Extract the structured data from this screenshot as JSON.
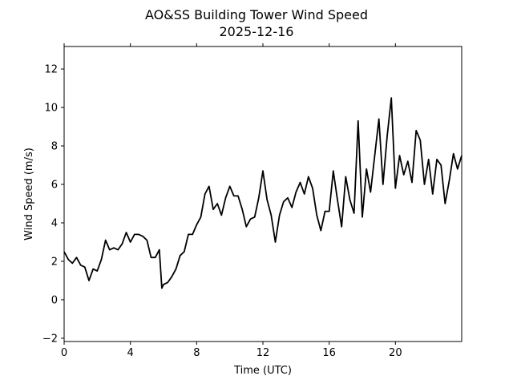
{
  "chart_data": {
    "type": "line",
    "title": "AO&SS Building Tower Wind Speed",
    "subtitle": "2025-12-16",
    "xlabel": "Time (UTC)",
    "ylabel": "Wind Speed (m/s)",
    "xlim": [
      0,
      24
    ],
    "ylim": [
      -2.17,
      13.17
    ],
    "xticks": [
      0,
      4,
      8,
      12,
      16,
      20
    ],
    "xtick_labels": [
      "0",
      "4",
      "8",
      "12",
      "16",
      "20"
    ],
    "yticks": [
      -2,
      0,
      2,
      4,
      6,
      8,
      10,
      12
    ],
    "ytick_labels": [
      "−2",
      "0",
      "2",
      "4",
      "6",
      "8",
      "10",
      "12"
    ],
    "grid": false,
    "line_color": "#000000",
    "x": [
      0,
      0.25,
      0.5,
      0.75,
      1,
      1.25,
      1.5,
      1.75,
      2,
      2.25,
      2.5,
      2.75,
      3,
      3.25,
      3.5,
      3.75,
      4,
      4.25,
      4.5,
      4.75,
      5,
      5.25,
      5.5,
      5.75,
      5.9,
      6,
      6.25,
      6.5,
      6.75,
      7,
      7.25,
      7.5,
      7.75,
      8,
      8.25,
      8.5,
      8.75,
      9,
      9.25,
      9.5,
      9.75,
      10,
      10.25,
      10.5,
      10.75,
      11,
      11.25,
      11.5,
      11.75,
      12,
      12.25,
      12.5,
      12.75,
      13,
      13.25,
      13.5,
      13.75,
      14,
      14.25,
      14.5,
      14.75,
      15,
      15.25,
      15.5,
      15.75,
      16,
      16.25,
      16.5,
      16.75,
      17,
      17.25,
      17.5,
      17.75,
      18,
      18.25,
      18.5,
      18.75,
      19,
      19.25,
      19.5,
      19.75,
      20,
      20.25,
      20.5,
      20.75,
      21,
      21.25,
      21.5,
      21.75,
      22,
      22.25,
      22.5,
      22.75,
      23,
      23.25,
      23.5,
      23.75,
      24
    ],
    "y": [
      2.5,
      2.1,
      1.9,
      2.2,
      1.8,
      1.7,
      1.0,
      1.6,
      1.5,
      2.1,
      3.1,
      2.6,
      2.7,
      2.6,
      2.9,
      3.5,
      3.0,
      3.4,
      3.4,
      3.3,
      3.1,
      2.2,
      2.2,
      2.6,
      0.6,
      0.8,
      0.9,
      1.2,
      1.6,
      2.3,
      2.5,
      3.4,
      3.4,
      3.9,
      4.3,
      5.5,
      5.9,
      4.7,
      5.0,
      4.4,
      5.3,
      5.9,
      5.4,
      5.4,
      4.7,
      3.8,
      4.2,
      4.3,
      5.3,
      6.7,
      5.2,
      4.4,
      3.0,
      4.4,
      5.1,
      5.3,
      4.8,
      5.6,
      6.1,
      5.5,
      6.4,
      5.8,
      4.4,
      3.6,
      4.6,
      4.6,
      6.7,
      5.2,
      3.8,
      6.4,
      5.2,
      4.5,
      9.3,
      4.3,
      6.8,
      5.6,
      7.5,
      9.4,
      6.0,
      8.5,
      10.5,
      5.8,
      7.5,
      6.5,
      7.2,
      6.1,
      8.8,
      8.3,
      6.0,
      7.3,
      5.5,
      7.3,
      7.0,
      5.0,
      6.2,
      7.6,
      6.8,
      7.5
    ]
  }
}
